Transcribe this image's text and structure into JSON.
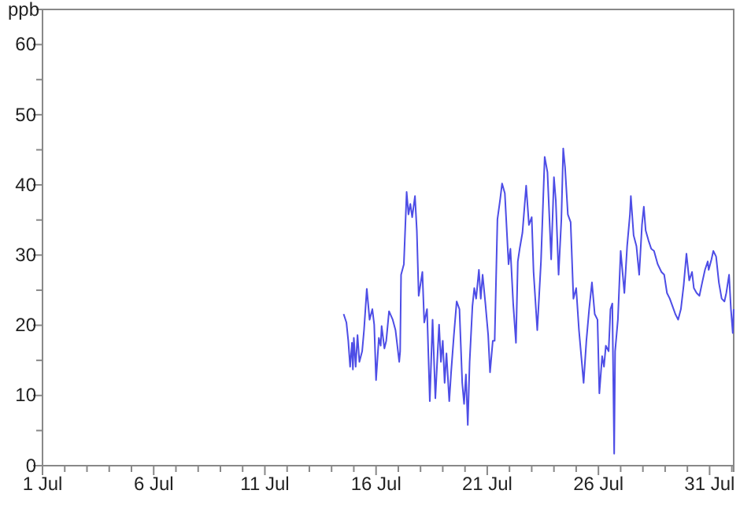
{
  "chart_data": {
    "type": "line",
    "ylabel": "ppb",
    "xlim": [
      "--07-01",
      "--08-01T02:00"
    ],
    "ylim": [
      0,
      65
    ],
    "xticks": [
      {
        "value": "--07-01",
        "label": "1 Jul"
      },
      {
        "value": "--07-02",
        "label": null
      },
      {
        "value": "--07-03",
        "label": null
      },
      {
        "value": "--07-04",
        "label": null
      },
      {
        "value": "--07-05",
        "label": null
      },
      {
        "value": "--07-06",
        "label": "6 Jul"
      },
      {
        "value": "--07-07",
        "label": null
      },
      {
        "value": "--07-08",
        "label": null
      },
      {
        "value": "--07-09",
        "label": null
      },
      {
        "value": "--07-10",
        "label": null
      },
      {
        "value": "--07-11",
        "label": "11 Jul"
      },
      {
        "value": "--07-12",
        "label": null
      },
      {
        "value": "--07-13",
        "label": null
      },
      {
        "value": "--07-14",
        "label": null
      },
      {
        "value": "--07-15",
        "label": null
      },
      {
        "value": "--07-16",
        "label": "16 Jul"
      },
      {
        "value": "--07-17",
        "label": null
      },
      {
        "value": "--07-18",
        "label": null
      },
      {
        "value": "--07-19",
        "label": null
      },
      {
        "value": "--07-20",
        "label": null
      },
      {
        "value": "--07-21",
        "label": "21 Jul"
      },
      {
        "value": "--07-22",
        "label": null
      },
      {
        "value": "--07-23",
        "label": null
      },
      {
        "value": "--07-24",
        "label": null
      },
      {
        "value": "--07-25",
        "label": null
      },
      {
        "value": "--07-26",
        "label": "26 Jul"
      },
      {
        "value": "--07-27",
        "label": null
      },
      {
        "value": "--07-28",
        "label": null
      },
      {
        "value": "--07-29",
        "label": null
      },
      {
        "value": "--07-30",
        "label": null
      },
      {
        "value": "--07-31",
        "label": "31 Jul"
      },
      {
        "value": "--08-01",
        "label": null
      }
    ],
    "yticks": [
      0,
      {
        "value": 5,
        "label": null
      },
      10,
      {
        "value": 15,
        "label": null
      },
      20,
      {
        "value": 25,
        "label": null
      },
      30,
      {
        "value": 35,
        "label": null
      },
      40,
      {
        "value": 45,
        "label": null
      },
      50,
      {
        "value": 55,
        "label": null
      },
      60
    ],
    "grid": false,
    "marker": "none",
    "line_style": "solid",
    "series": [
      {
        "color": "#4d4de6",
        "x": [
          "--07-14T13:00",
          "--07-14T16:00",
          "--07-14T18:00",
          "--07-14T20:00",
          "--07-14T22:00",
          "--07-14T23:00",
          "--07-15T00:00",
          "--07-15T02:00",
          "--07-15T04:00",
          "--07-15T06:00",
          "--07-15T09:00",
          "--07-15T11:00",
          "--07-15T14:00",
          "--07-15T17:00",
          "--07-15T20:00",
          "--07-15T22:00",
          "--07-16T00:00",
          "--07-16T03:00",
          "--07-16T05:00",
          "--07-16T06:00",
          "--07-16T09:00",
          "--07-16T11:00",
          "--07-16T14:00",
          "--07-16T18:00",
          "--07-16T21:00",
          "--07-17T01:00",
          "--07-17T02:00",
          "--07-17T03:00",
          "--07-17T06:00",
          "--07-17T09:00",
          "--07-17T11:00",
          "--07-17T13:00",
          "--07-17T15:00",
          "--07-17T18:00",
          "--07-17T20:00",
          "--07-17T22:00",
          "--07-18T02:00",
          "--07-18T04:00",
          "--07-18T07:00",
          "--07-18T10:00",
          "--07-18T13:00",
          "--07-18T16:00",
          "--07-18T20:00",
          "--07-18T22:00",
          "--07-19T00:00",
          "--07-19T02:00",
          "--07-19T04:00",
          "--07-19T07:00",
          "--07-19T09:00",
          "--07-19T12:00",
          "--07-19T15:00",
          "--07-19T18:00",
          "--07-19T21:00",
          "--07-19T23:00",
          "--07-20T01:00",
          "--07-20T03:00",
          "--07-20T05:00",
          "--07-20T08:00",
          "--07-20T10:00",
          "--07-20T12:00",
          "--07-20T15:00",
          "--07-20T17:00",
          "--07-20T19:00",
          "--07-20T22:00",
          "--07-21T01:00",
          "--07-21T03:00",
          "--07-21T06:00",
          "--07-21T08:00",
          "--07-21T11:00",
          "--07-21T14:00",
          "--07-21T16:00",
          "--07-21T19:00",
          "--07-21T23:00",
          "--07-22T01:00",
          "--07-22T04:00",
          "--07-22T07:00",
          "--07-22T09:00",
          "--07-22T11:00",
          "--07-22T14:00",
          "--07-22T18:00",
          "--07-22T21:00",
          "--07-23T00:00",
          "--07-23T02:00",
          "--07-23T06:00",
          "--07-23T10:00",
          "--07-23T14:00",
          "--07-23T17:00",
          "--07-23T21:00",
          "--07-24T00:00",
          "--07-24T02:00",
          "--07-24T05:00",
          "--07-24T08:00",
          "--07-24T10:00",
          "--07-24T12:00",
          "--07-24T15:00",
          "--07-24T18:00",
          "--07-24T21:00",
          "--07-25T00:00",
          "--07-25T03:00",
          "--07-25T06:00",
          "--07-25T08:00",
          "--07-25T11:00",
          "--07-25T14:00",
          "--07-25T17:00",
          "--07-25T20:00",
          "--07-25T23:00",
          "--07-26T01:00",
          "--07-26T04:00",
          "--07-26T06:00",
          "--07-26T08:00",
          "--07-26T11:00",
          "--07-26T13:00",
          "--07-26T15:00",
          "--07-26T17:00",
          "--07-26T18:00",
          "--07-26T21:00",
          "--07-27T00:00",
          "--07-27T04:00",
          "--07-27T07:00",
          "--07-27T10:00",
          "--07-27T11:00",
          "--07-27T14:00",
          "--07-27T17:00",
          "--07-27T20:00",
          "--07-27T23:00",
          "--07-28T01:00",
          "--07-28T03:00",
          "--07-28T06:00",
          "--07-28T09:00",
          "--07-28T12:00",
          "--07-28T16:00",
          "--07-28T20:00",
          "--07-28T23:00",
          "--07-29T02:00",
          "--07-29T05:00",
          "--07-29T08:00",
          "--07-29T11:00",
          "--07-29T14:00",
          "--07-29T17:00",
          "--07-29T20:00",
          "--07-29T23:00",
          "--07-30T02:00",
          "--07-30T05:00",
          "--07-30T07:00",
          "--07-30T10:00",
          "--07-30T13:00",
          "--07-30T16:00",
          "--07-30T19:00",
          "--07-30T22:00",
          "--07-30T23:00",
          "--07-31T02:00",
          "--07-31T04:00",
          "--07-31T07:00",
          "--07-31T10:00",
          "--07-31T13:00",
          "--07-31T16:00",
          "--07-31T18:00",
          "--07-31T21:00",
          "--07-31T23:00",
          "--08-01T01:00",
          "--08-01T02:00"
        ],
        "values": [
          21.6,
          20.4,
          17.8,
          14.1,
          17.5,
          13.7,
          18.2,
          14.1,
          18.6,
          14.8,
          16.3,
          19.3,
          25.2,
          20.8,
          22.3,
          20.1,
          12.2,
          18.2,
          17.1,
          19.9,
          16.7,
          17.8,
          22.0,
          20.8,
          19.3,
          14.8,
          16.3,
          27.2,
          28.7,
          39.0,
          35.8,
          37.3,
          35.4,
          38.4,
          33.5,
          24.2,
          27.6,
          20.4,
          22.3,
          9.2,
          20.8,
          9.6,
          20.1,
          14.8,
          17.8,
          11.8,
          16.0,
          9.2,
          13.3,
          18.6,
          23.4,
          22.3,
          11.8,
          8.8,
          13.0,
          5.8,
          14.8,
          22.7,
          25.3,
          23.8,
          27.9,
          23.8,
          27.2,
          23.1,
          18.6,
          13.3,
          17.8,
          17.8,
          35.1,
          38.0,
          40.2,
          38.8,
          28.7,
          30.9,
          23.1,
          17.5,
          29.1,
          30.9,
          33.2,
          39.9,
          34.3,
          35.4,
          27.6,
          19.3,
          29.1,
          44.0,
          41.8,
          29.4,
          41.1,
          37.8,
          27.2,
          35.1,
          45.2,
          42.5,
          35.8,
          34.7,
          23.8,
          25.3,
          19.3,
          14.8,
          11.8,
          17.8,
          22.3,
          26.1,
          21.6,
          20.8,
          10.3,
          15.6,
          14.1,
          17.1,
          16.3,
          22.3,
          23.1,
          1.7,
          16.3,
          20.8,
          30.6,
          24.6,
          31.3,
          35.8,
          38.4,
          32.8,
          31.3,
          27.2,
          34.3,
          36.9,
          33.5,
          32.1,
          30.9,
          30.6,
          28.7,
          27.6,
          27.2,
          24.6,
          23.8,
          22.7,
          21.6,
          20.8,
          22.3,
          25.7,
          30.2,
          26.4,
          27.6,
          25.3,
          24.6,
          24.2,
          26.1,
          27.9,
          29.1,
          27.9,
          29.4,
          30.6,
          29.8,
          26.1,
          23.8,
          23.4,
          24.6,
          27.2,
          22.3,
          18.9,
          22.3
        ]
      }
    ]
  }
}
